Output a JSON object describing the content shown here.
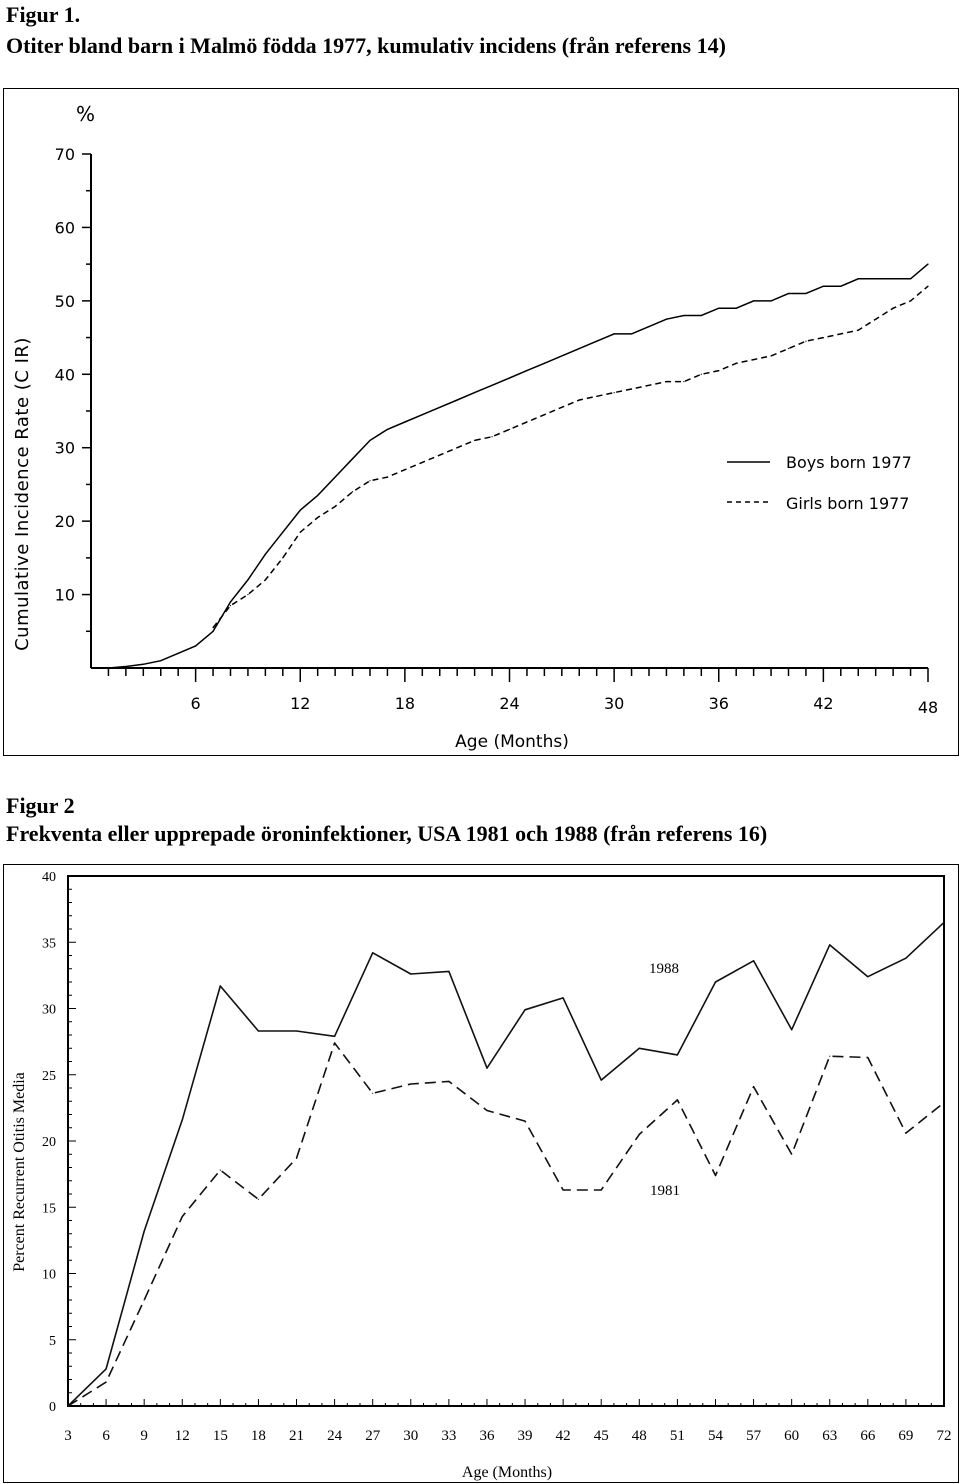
{
  "figure1": {
    "label": "Figur 1.",
    "caption": "Otiter bland barn i Malmö födda 1977, kumulativ incidens (från referens 14)",
    "chart_data": {
      "type": "line",
      "title": "",
      "xlabel": "Age  (Months)",
      "ylabel": "Cumulative  Incidence  Rate    (C IR)",
      "yunit": "%",
      "xlim": [
        0,
        48
      ],
      "ylim": [
        0,
        70
      ],
      "xticks": [
        6,
        12,
        18,
        24,
        30,
        36,
        42,
        48
      ],
      "yticks": [
        10,
        20,
        30,
        40,
        50,
        60,
        70
      ],
      "legend_position": "right",
      "series": [
        {
          "name": "Boys born 1977",
          "style": "solid",
          "x": [
            1,
            2,
            3,
            4,
            5,
            6,
            7,
            8,
            9,
            10,
            11,
            12,
            13,
            14,
            15,
            16,
            17,
            18,
            19,
            20,
            21,
            22,
            23,
            24,
            25,
            26,
            27,
            28,
            29,
            30,
            31,
            32,
            33,
            34,
            35,
            36,
            37,
            38,
            39,
            40,
            41,
            42,
            43,
            44,
            45,
            46,
            47,
            48
          ],
          "y": [
            0,
            0.2,
            0.5,
            1,
            2,
            3,
            5,
            9,
            12,
            15.5,
            18.5,
            21.5,
            23.5,
            26,
            28.5,
            31,
            32.5,
            33.5,
            34.5,
            35.5,
            36.5,
            37.5,
            38.5,
            39.5,
            40.5,
            41.5,
            42.5,
            43.5,
            44.5,
            45.5,
            45.5,
            46.5,
            47.5,
            48,
            48,
            49,
            49,
            50,
            50,
            51,
            51,
            52,
            52,
            53,
            53,
            53,
            53,
            55
          ]
        },
        {
          "name": "Girls born 1977",
          "style": "dashed",
          "x": [
            7,
            8,
            9,
            10,
            11,
            12,
            13,
            14,
            15,
            16,
            17,
            18,
            19,
            20,
            21,
            22,
            23,
            24,
            25,
            26,
            27,
            28,
            29,
            30,
            31,
            32,
            33,
            34,
            35,
            36,
            37,
            38,
            39,
            40,
            41,
            42,
            43,
            44,
            45,
            46,
            47,
            48
          ],
          "y": [
            5.5,
            8.5,
            10,
            12,
            15,
            18.5,
            20.5,
            22,
            24,
            25.5,
            26,
            27,
            28,
            29,
            30,
            31,
            31.5,
            32.5,
            33.5,
            34.5,
            35.5,
            36.5,
            37,
            37.5,
            38,
            38.5,
            39,
            39,
            40,
            40.5,
            41.5,
            42,
            42.5,
            43.5,
            44.5,
            45,
            45.5,
            46,
            47.5,
            49,
            50,
            52
          ]
        }
      ],
      "legend": [
        "Boys born 1977",
        "Girls born 1977"
      ],
      "legend_samples": [
        "———",
        "- - - -"
      ]
    }
  },
  "figure2": {
    "label": "Figur 2",
    "caption": "Frekventa eller upprepade öroninfektioner, USA 1981 och 1988 (från referens 16)",
    "chart_data": {
      "type": "line",
      "title": "",
      "xlabel": "Age (Months)",
      "ylabel": "Percent Recurrent Otitis Media",
      "xlim": [
        3,
        72
      ],
      "ylim": [
        0,
        40
      ],
      "xticks": [
        3,
        6,
        9,
        12,
        15,
        18,
        21,
        24,
        27,
        30,
        33,
        36,
        39,
        42,
        45,
        48,
        51,
        54,
        57,
        60,
        63,
        66,
        69,
        72
      ],
      "yticks": [
        0,
        5,
        10,
        15,
        20,
        25,
        30,
        35,
        40
      ],
      "series": [
        {
          "name": "1988",
          "style": "solid",
          "x": [
            3,
            6,
            9,
            12,
            15,
            18,
            21,
            24,
            27,
            30,
            33,
            36,
            39,
            42,
            45,
            48,
            51,
            54,
            57,
            60,
            63,
            66,
            69,
            72
          ],
          "y": [
            0,
            2.8,
            13.2,
            21.6,
            31.7,
            28.3,
            28.3,
            27.9,
            34.2,
            32.6,
            32.8,
            25.5,
            29.9,
            30.8,
            24.6,
            27.0,
            26.5,
            32.0,
            33.6,
            28.4,
            34.8,
            32.4,
            33.8,
            36.5
          ]
        },
        {
          "name": "1981",
          "style": "dashed",
          "x": [
            3,
            6,
            9,
            12,
            15,
            18,
            21,
            24,
            27,
            30,
            33,
            36,
            39,
            42,
            45,
            48,
            51,
            54,
            57,
            60,
            63,
            66,
            69,
            72
          ],
          "y": [
            0,
            1.8,
            8.0,
            14.3,
            17.8,
            15.6,
            18.7,
            27.4,
            23.6,
            24.3,
            24.5,
            22.3,
            21.5,
            16.3,
            16.3,
            20.5,
            23.1,
            17.4,
            24.1,
            19.0,
            26.4,
            26.3,
            20.6,
            22.9
          ]
        }
      ],
      "annotations": [
        {
          "text": "1988",
          "series": "1988",
          "at_x": 60,
          "at_y": 33
        },
        {
          "text": "1981",
          "series": "1981",
          "at_x": 60,
          "at_y": 16.3
        }
      ]
    }
  }
}
